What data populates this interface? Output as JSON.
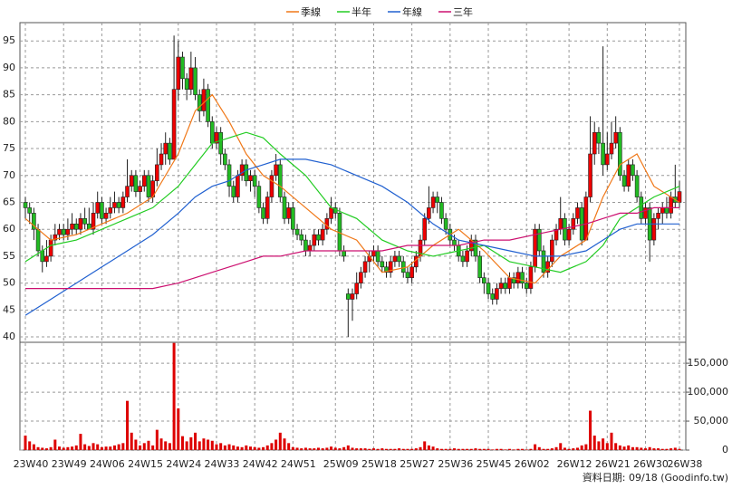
{
  "chart_data": {
    "type": "candlestick",
    "footer": "資料日期: 09/18 (Goodinfo.tw)",
    "up_color": "#ee0000",
    "down_color": "#22bb22",
    "volume_color": "#dd0000",
    "grid": true,
    "categories": [
      "23W40",
      null,
      null,
      null,
      null,
      null,
      null,
      null,
      null,
      "23W49",
      null,
      null,
      null,
      null,
      null,
      null,
      null,
      null,
      "24W06",
      null,
      null,
      null,
      null,
      null,
      null,
      null,
      null,
      "24W15",
      null,
      null,
      null,
      null,
      null,
      null,
      null,
      null,
      "24W24",
      null,
      null,
      null,
      null,
      null,
      null,
      null,
      null,
      "24W33",
      null,
      null,
      null,
      null,
      null,
      null,
      null,
      null,
      "24W42",
      null,
      null,
      null,
      null,
      null,
      null,
      null,
      null,
      "24W51",
      null,
      null,
      null,
      null,
      null,
      null,
      null,
      null,
      null,
      "25W09",
      null,
      null,
      null,
      null,
      null,
      null,
      null,
      null,
      "25W18",
      null,
      null,
      null,
      null,
      null,
      null,
      null,
      null,
      "25W27",
      null,
      null,
      null,
      null,
      null,
      null,
      null,
      null,
      "25W36",
      null,
      null,
      null,
      null,
      null,
      null,
      null,
      null,
      "25W45",
      null,
      null,
      null,
      null,
      null,
      null,
      null,
      null,
      "26W02",
      null,
      null,
      null,
      null,
      null,
      null,
      null,
      null,
      null,
      "26W12",
      null,
      null,
      null,
      null,
      null,
      null,
      null,
      null,
      "26W21",
      null,
      null,
      null,
      null,
      null,
      null,
      null,
      null,
      "26W30",
      null,
      null,
      null,
      null,
      null,
      null,
      null,
      "26W38"
    ],
    "ohlc": [
      [
        65,
        66,
        62,
        64
      ],
      [
        64,
        65,
        61,
        63
      ],
      [
        63,
        64,
        58,
        60
      ],
      [
        60,
        61,
        55,
        56
      ],
      [
        56,
        57,
        52,
        54
      ],
      [
        54,
        58,
        53,
        55
      ],
      [
        55,
        59,
        54,
        58
      ],
      [
        58,
        61,
        57,
        59
      ],
      [
        59,
        61,
        58,
        60
      ],
      [
        60,
        61,
        58,
        59
      ],
      [
        59,
        62,
        58,
        60
      ],
      [
        60,
        63,
        59,
        61
      ],
      [
        61,
        62,
        59,
        60
      ],
      [
        60,
        63,
        59,
        62
      ],
      [
        62,
        64,
        60,
        61
      ],
      [
        61,
        64,
        60,
        60
      ],
      [
        60,
        65,
        59,
        63
      ],
      [
        63,
        67,
        62,
        65
      ],
      [
        65,
        66,
        61,
        62
      ],
      [
        62,
        64,
        61,
        63
      ],
      [
        63,
        66,
        62,
        64
      ],
      [
        64,
        67,
        63,
        65
      ],
      [
        65,
        66,
        63,
        64
      ],
      [
        64,
        67,
        63,
        66
      ],
      [
        66,
        73,
        65,
        68
      ],
      [
        68,
        71,
        67,
        70
      ],
      [
        70,
        71,
        66,
        67
      ],
      [
        67,
        69,
        65,
        68
      ],
      [
        68,
        71,
        67,
        70
      ],
      [
        70,
        71,
        65,
        66
      ],
      [
        66,
        70,
        65,
        69
      ],
      [
        69,
        75,
        68,
        72
      ],
      [
        72,
        76,
        71,
        74
      ],
      [
        74,
        78,
        72,
        76
      ],
      [
        76,
        77,
        72,
        73
      ],
      [
        73,
        96,
        73,
        86
      ],
      [
        86,
        95,
        84,
        92
      ],
      [
        92,
        93,
        86,
        88
      ],
      [
        88,
        89,
        84,
        86
      ],
      [
        86,
        93,
        85,
        90
      ],
      [
        90,
        92,
        84,
        85
      ],
      [
        85,
        86,
        80,
        82
      ],
      [
        82,
        88,
        81,
        86
      ],
      [
        86,
        87,
        79,
        80
      ],
      [
        80,
        81,
        75,
        76
      ],
      [
        76,
        79,
        75,
        78
      ],
      [
        78,
        79,
        72,
        74
      ],
      [
        74,
        75,
        71,
        72
      ],
      [
        72,
        73,
        66,
        68
      ],
      [
        68,
        69,
        65,
        66
      ],
      [
        66,
        71,
        65,
        70
      ],
      [
        70,
        73,
        69,
        72
      ],
      [
        72,
        73,
        68,
        69
      ],
      [
        69,
        71,
        67,
        70
      ],
      [
        70,
        71,
        66,
        68
      ],
      [
        68,
        69,
        63,
        64
      ],
      [
        64,
        65,
        61,
        62
      ],
      [
        62,
        67,
        61,
        66
      ],
      [
        66,
        71,
        65,
        70
      ],
      [
        70,
        74,
        69,
        72
      ],
      [
        72,
        73,
        65,
        66
      ],
      [
        66,
        67,
        61,
        62
      ],
      [
        62,
        65,
        61,
        64
      ],
      [
        64,
        65,
        59,
        60
      ],
      [
        60,
        61,
        58,
        59
      ],
      [
        59,
        60,
        57,
        58
      ],
      [
        58,
        59,
        55,
        56
      ],
      [
        56,
        58,
        55,
        57
      ],
      [
        57,
        60,
        56,
        59
      ],
      [
        59,
        60,
        57,
        58
      ],
      [
        58,
        61,
        57,
        60
      ],
      [
        60,
        63,
        59,
        62
      ],
      [
        62,
        66,
        61,
        64
      ],
      [
        64,
        65,
        62,
        63
      ],
      [
        63,
        64,
        55,
        56
      ],
      [
        56,
        57,
        54,
        55
      ],
      [
        48,
        49,
        40,
        47
      ],
      [
        47,
        49,
        43,
        48
      ],
      [
        48,
        52,
        47,
        50
      ],
      [
        50,
        53,
        49,
        52
      ],
      [
        52,
        55,
        51,
        54
      ],
      [
        54,
        56,
        52,
        55
      ],
      [
        55,
        57,
        54,
        56
      ],
      [
        56,
        57,
        53,
        54
      ],
      [
        54,
        55,
        52,
        53
      ],
      [
        53,
        54,
        51,
        52
      ],
      [
        52,
        55,
        51,
        54
      ],
      [
        54,
        56,
        53,
        55
      ],
      [
        55,
        56,
        53,
        54
      ],
      [
        54,
        55,
        51,
        52
      ],
      [
        52,
        53,
        50,
        51
      ],
      [
        51,
        54,
        50,
        53
      ],
      [
        53,
        56,
        52,
        55
      ],
      [
        55,
        59,
        54,
        58
      ],
      [
        58,
        63,
        57,
        62
      ],
      [
        62,
        68,
        61,
        64
      ],
      [
        64,
        67,
        63,
        66
      ],
      [
        66,
        67,
        63,
        65
      ],
      [
        65,
        66,
        61,
        62
      ],
      [
        62,
        63,
        59,
        60
      ],
      [
        60,
        61,
        57,
        58
      ],
      [
        58,
        59,
        56,
        57
      ],
      [
        57,
        58,
        54,
        55
      ],
      [
        55,
        56,
        53,
        54
      ],
      [
        54,
        57,
        53,
        56
      ],
      [
        56,
        59,
        55,
        58
      ],
      [
        58,
        59,
        54,
        55
      ],
      [
        55,
        56,
        50,
        51
      ],
      [
        51,
        52,
        48,
        50
      ],
      [
        50,
        51,
        47,
        48
      ],
      [
        48,
        49,
        46,
        47
      ],
      [
        47,
        50,
        46,
        49
      ],
      [
        49,
        51,
        48,
        50
      ],
      [
        50,
        51,
        48,
        49
      ],
      [
        49,
        52,
        48,
        51
      ],
      [
        51,
        52,
        49,
        50
      ],
      [
        50,
        53,
        49,
        52
      ],
      [
        52,
        53,
        49,
        50
      ],
      [
        50,
        51,
        48,
        49
      ],
      [
        49,
        54,
        48,
        53
      ],
      [
        53,
        61,
        52,
        60
      ],
      [
        60,
        61,
        55,
        56
      ],
      [
        56,
        57,
        51,
        52
      ],
      [
        52,
        55,
        51,
        54
      ],
      [
        54,
        59,
        53,
        58
      ],
      [
        58,
        61,
        57,
        60
      ],
      [
        60,
        66,
        59,
        62
      ],
      [
        62,
        63,
        57,
        58
      ],
      [
        58,
        61,
        57,
        60
      ],
      [
        60,
        63,
        59,
        62
      ],
      [
        62,
        65,
        61,
        64
      ],
      [
        64,
        65,
        57,
        58
      ],
      [
        58,
        67,
        58,
        66
      ],
      [
        66,
        81,
        65,
        74
      ],
      [
        74,
        80,
        72,
        78
      ],
      [
        78,
        79,
        74,
        76
      ],
      [
        76,
        94,
        70,
        72
      ],
      [
        72,
        78,
        71,
        74
      ],
      [
        74,
        80,
        73,
        76
      ],
      [
        76,
        81,
        75,
        78
      ],
      [
        78,
        79,
        69,
        70
      ],
      [
        70,
        71,
        67,
        68
      ],
      [
        68,
        73,
        67,
        72
      ],
      [
        72,
        73,
        69,
        70
      ],
      [
        70,
        71,
        65,
        66
      ],
      [
        66,
        67,
        61,
        62
      ],
      [
        62,
        65,
        61,
        64
      ],
      [
        64,
        65,
        54,
        58
      ],
      [
        58,
        63,
        57,
        62
      ],
      [
        62,
        64,
        60,
        63
      ],
      [
        63,
        65,
        61,
        64
      ],
      [
        64,
        66,
        62,
        63
      ],
      [
        63,
        67,
        62,
        66
      ],
      [
        66,
        72,
        64,
        65
      ],
      [
        65,
        69,
        64,
        67
      ]
    ],
    "volume": [
      25000,
      15000,
      10000,
      5000,
      4000,
      3000,
      5000,
      18000,
      6000,
      4000,
      5000,
      6000,
      8000,
      28000,
      10000,
      7000,
      12000,
      10000,
      5000,
      6000,
      6000,
      8000,
      10000,
      12000,
      85000,
      30000,
      18000,
      8000,
      12000,
      16000,
      8000,
      35000,
      20000,
      15000,
      12000,
      185000,
      72000,
      24000,
      15000,
      22000,
      30000,
      15000,
      20000,
      18000,
      16000,
      10000,
      12000,
      8000,
      10000,
      8000,
      6000,
      5000,
      8000,
      6000,
      5000,
      4000,
      5000,
      8000,
      12000,
      18000,
      30000,
      20000,
      12000,
      5000,
      4000,
      3000,
      4000,
      3000,
      3000,
      4000,
      3000,
      4000,
      6000,
      4000,
      3000,
      5000,
      8000,
      4000,
      3000,
      3000,
      3000,
      2000,
      3000,
      2000,
      3000,
      2000,
      2000,
      2000,
      3000,
      2000,
      2000,
      2000,
      3000,
      5000,
      15000,
      8000,
      6000,
      3000,
      2000,
      2000,
      2000,
      3000,
      2000,
      2000,
      2000,
      2000,
      3000,
      2000,
      2000,
      2000,
      1000,
      2000,
      2000,
      1000,
      2000,
      1000,
      2000,
      2000,
      1000,
      2000,
      10000,
      5000,
      2000,
      2000,
      3000,
      5000,
      12000,
      4000,
      2000,
      3000,
      4000,
      8000,
      10000,
      68000,
      25000,
      15000,
      20000,
      12000,
      30000,
      12000,
      8000,
      6000,
      8000,
      5000,
      5000,
      4000,
      3000,
      5000,
      3000,
      3000,
      2000,
      2000,
      3000,
      4000,
      2000
    ],
    "ylim": [
      39,
      98.4
    ],
    "yticks": [
      40,
      45,
      50,
      55,
      60,
      65,
      70,
      75,
      80,
      85,
      90,
      95
    ],
    "y2lim": [
      0,
      183000
    ],
    "y2ticks": [
      0,
      {
        "value": 50000,
        "label": "50,000"
      },
      {
        "value": 100000,
        "label": "100,000"
      },
      {
        "value": 150000,
        "label": "150,000"
      }
    ],
    "series": [
      {
        "name": "季線",
        "color": "#f07818",
        "x": [
          0,
          6,
          12,
          18,
          24,
          30,
          36,
          40,
          44,
          48,
          52,
          56,
          60,
          66,
          72,
          78,
          84,
          90,
          96,
          102,
          108,
          114,
          120,
          126,
          132,
          136,
          140,
          144,
          148,
          154
        ],
        "values": [
          62,
          58,
          59,
          61,
          63,
          66,
          74,
          82,
          85,
          80,
          74,
          70,
          68,
          64,
          60,
          58,
          52,
          53,
          57,
          60,
          56,
          51,
          50,
          55,
          58,
          66,
          72,
          74,
          68,
          65
        ]
      },
      {
        "name": "半年",
        "color": "#22cc22",
        "x": [
          0,
          6,
          12,
          18,
          24,
          30,
          36,
          40,
          44,
          48,
          52,
          56,
          60,
          66,
          72,
          78,
          84,
          90,
          96,
          102,
          108,
          114,
          120,
          126,
          132,
          136,
          140,
          144,
          148,
          154
        ],
        "values": [
          54,
          57,
          58,
          60,
          62,
          64,
          68,
          72,
          76,
          77,
          78,
          77,
          74,
          70,
          64,
          62,
          58,
          56,
          55,
          56,
          57,
          54,
          53,
          52,
          54,
          57,
          62,
          64,
          66,
          68
        ]
      },
      {
        "name": "年線",
        "color": "#2060d0",
        "x": [
          0,
          6,
          12,
          18,
          24,
          30,
          36,
          40,
          44,
          48,
          52,
          56,
          60,
          66,
          72,
          78,
          84,
          90,
          96,
          102,
          108,
          114,
          120,
          126,
          132,
          136,
          140,
          144,
          148,
          154
        ],
        "values": [
          44,
          47,
          50,
          53,
          56,
          59,
          63,
          66,
          68,
          69,
          71,
          72,
          73,
          73,
          72,
          70,
          68,
          65,
          61,
          58,
          57,
          56,
          55,
          55,
          56,
          58,
          60,
          61,
          61,
          61
        ]
      },
      {
        "name": "三年",
        "color": "#cc1070",
        "x": [
          0,
          6,
          12,
          18,
          24,
          30,
          36,
          40,
          44,
          48,
          52,
          56,
          60,
          66,
          72,
          78,
          84,
          90,
          96,
          102,
          108,
          114,
          120,
          126,
          132,
          136,
          140,
          144,
          148,
          154
        ],
        "values": [
          49,
          49,
          49,
          49,
          49,
          49,
          50,
          51,
          52,
          53,
          54,
          55,
          55,
          56,
          56,
          56,
          56,
          57,
          57,
          57,
          58,
          58,
          59,
          60,
          61,
          62,
          63,
          63,
          64,
          64
        ]
      }
    ]
  }
}
